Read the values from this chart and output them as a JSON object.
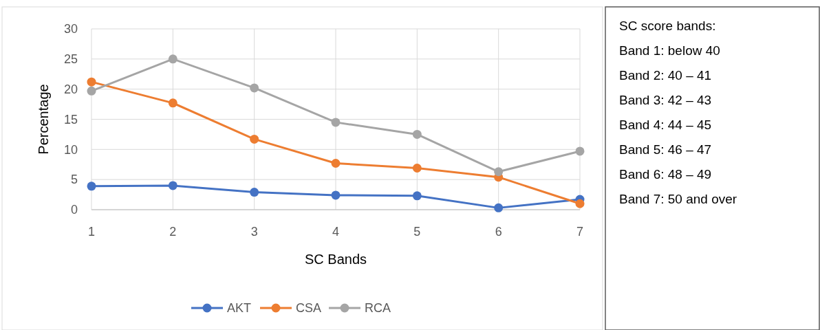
{
  "chart_data": {
    "type": "line",
    "xlabel": "SC Bands",
    "ylabel": "Percentage",
    "x": [
      1,
      2,
      3,
      4,
      5,
      6,
      7
    ],
    "xlim": [
      1,
      7
    ],
    "xticks": [
      1,
      2,
      3,
      4,
      5,
      6,
      7
    ],
    "ylim": [
      0,
      30
    ],
    "yticks": [
      0,
      5,
      10,
      15,
      20,
      25,
      30
    ],
    "grid": true,
    "legend": "bottom",
    "marker": "circle",
    "line_style": "solid",
    "series": [
      {
        "name": "AKT",
        "color": "#4472c4",
        "values": [
          3.9,
          4.0,
          2.9,
          2.4,
          2.3,
          0.3,
          1.7
        ]
      },
      {
        "name": "CSA",
        "color": "#ed7d31",
        "values": [
          21.2,
          17.7,
          11.7,
          7.7,
          6.9,
          5.4,
          1.0
        ]
      },
      {
        "name": "RCA",
        "color": "#a5a5a5",
        "values": [
          19.7,
          25.0,
          20.2,
          14.5,
          12.5,
          6.3,
          9.7
        ]
      }
    ],
    "annotations": [
      "SC score bands:",
      "Band 1: below 40",
      "Band 2: 40 – 41",
      "Band 3: 42 – 43",
      "Band 4: 44 – 45",
      "Band 5: 46 – 47",
      "Band 6: 48 – 49",
      "Band 7: 50 and over"
    ]
  }
}
